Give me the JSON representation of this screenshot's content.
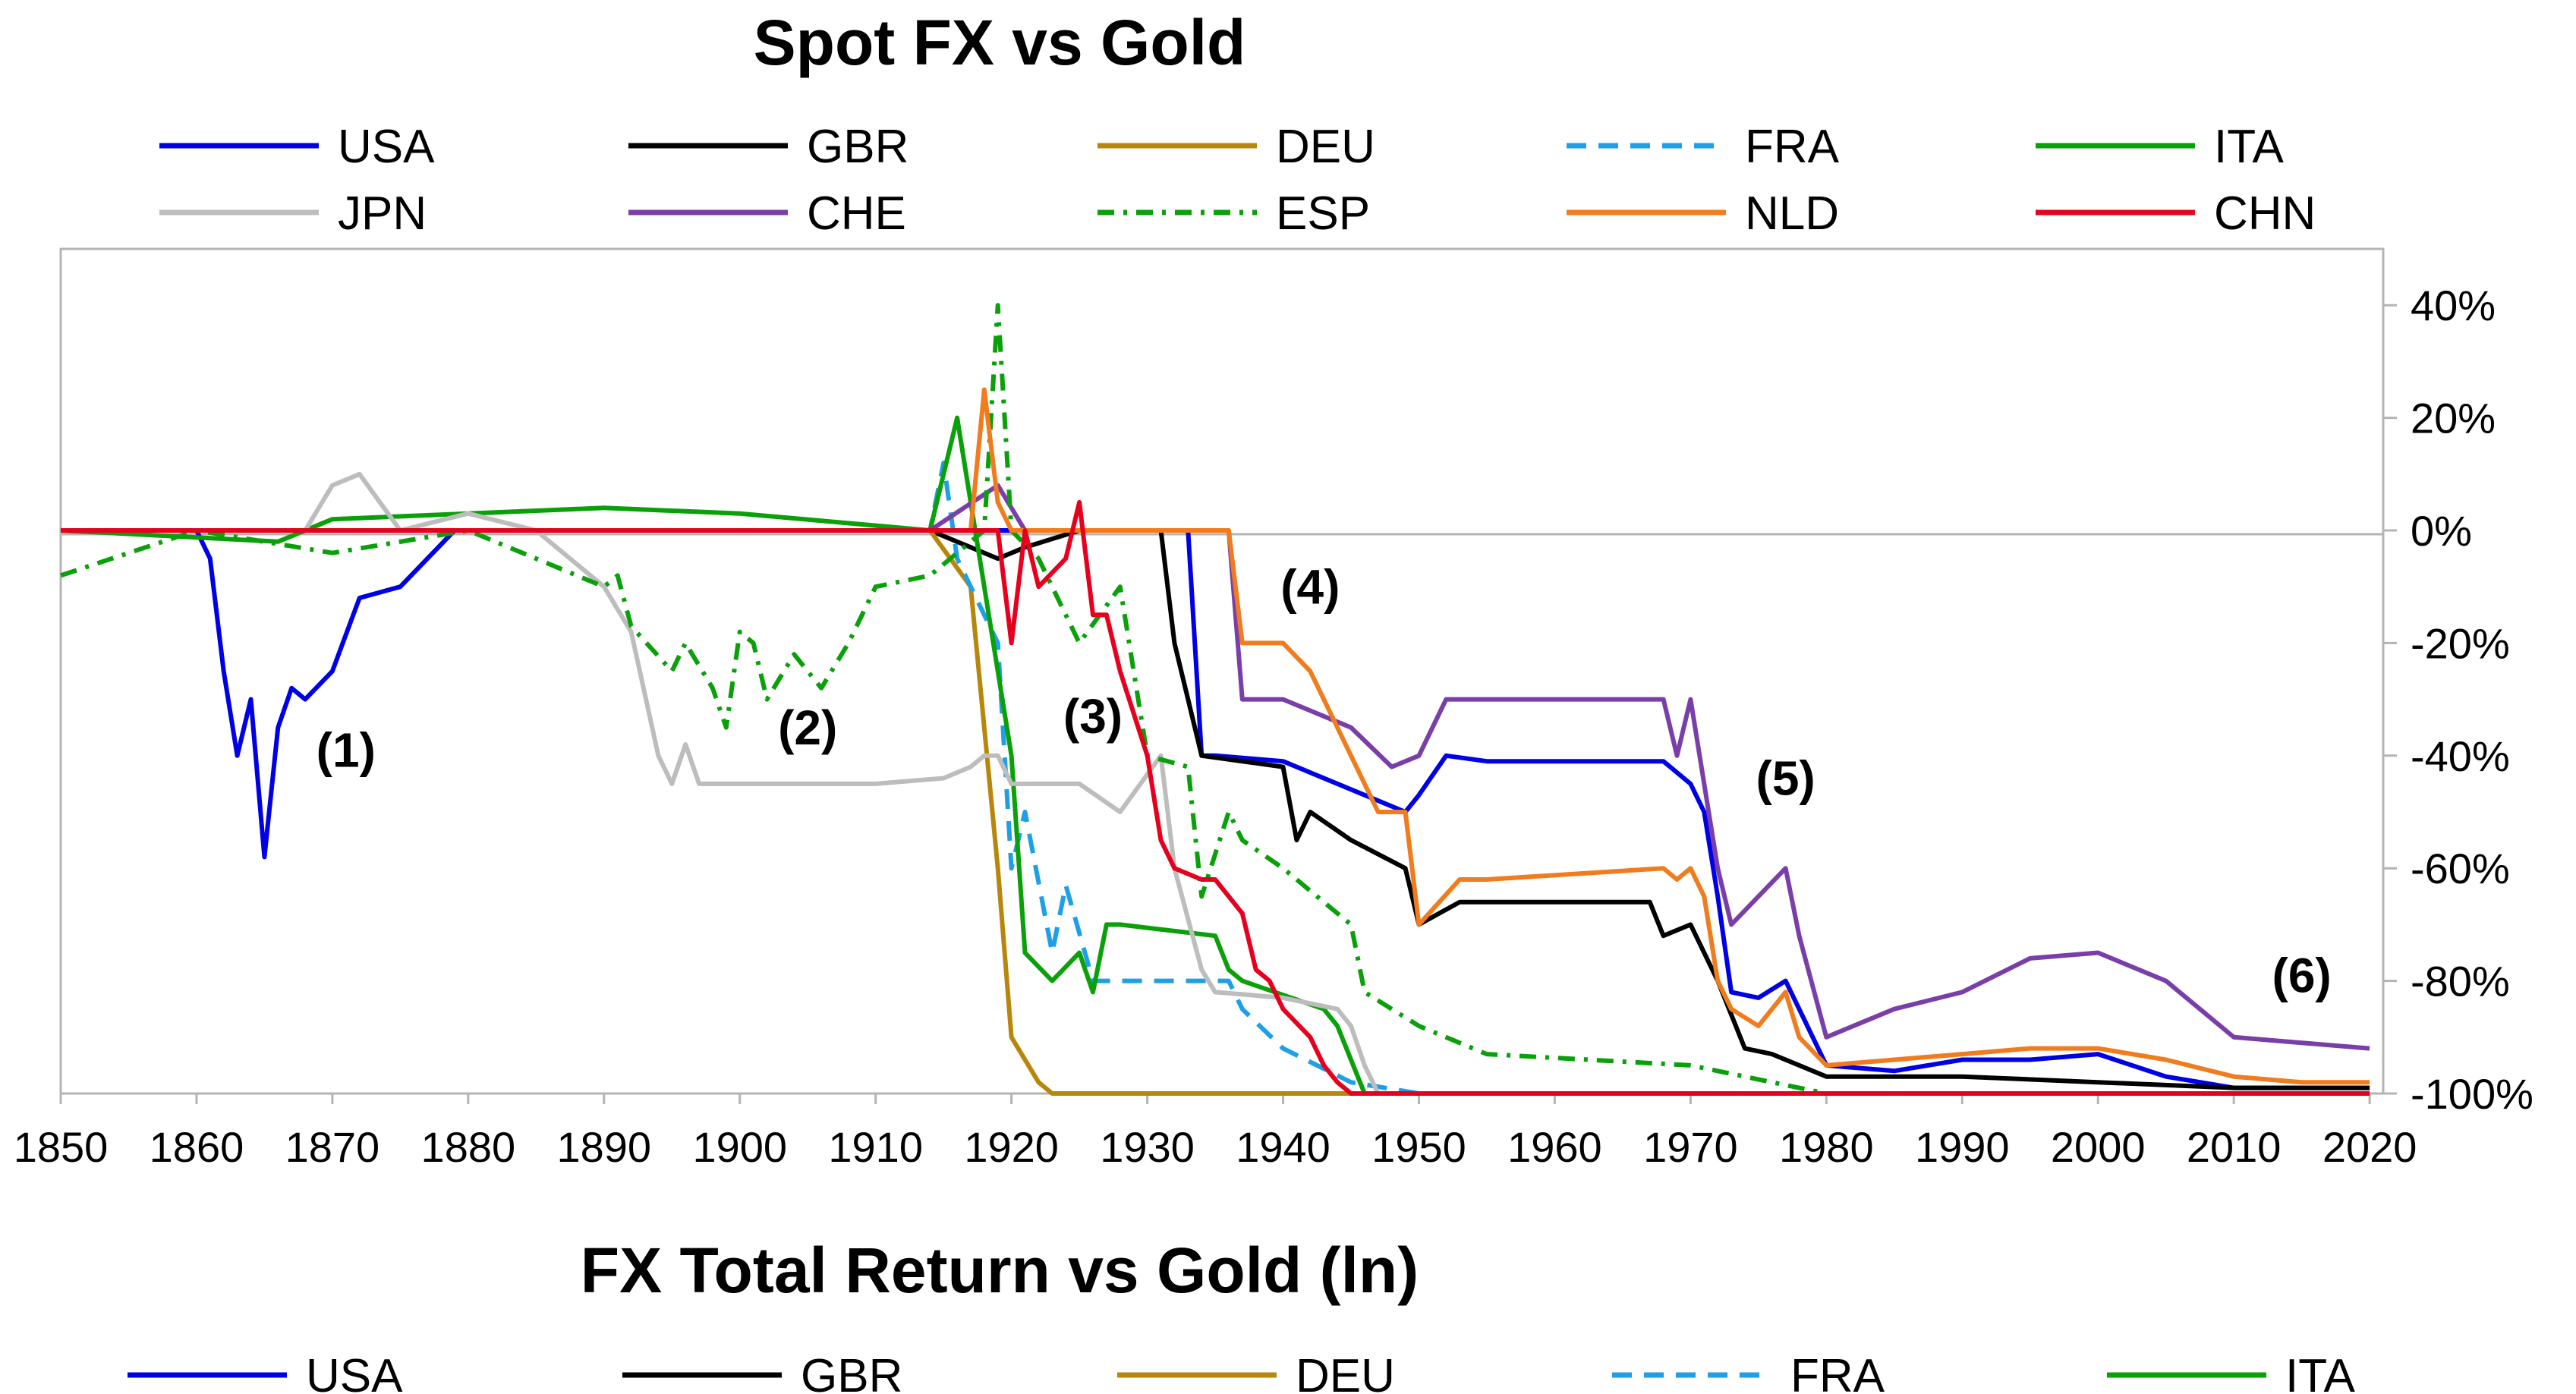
{
  "chart_data": [
    {
      "type": "line",
      "title": "Spot FX vs Gold",
      "xlabel": "",
      "ylabel": "",
      "xlim": [
        1850,
        2021
      ],
      "ylim": [
        -100,
        50
      ],
      "x_ticks": [
        "1850",
        "1860",
        "1870",
        "1880",
        "1890",
        "1900",
        "1910",
        "1920",
        "1930",
        "1940",
        "1950",
        "1960",
        "1970",
        "1980",
        "1990",
        "2000",
        "2010",
        "2020"
      ],
      "y_ticks": [
        "40%",
        "20%",
        "0%",
        "-20%",
        "-40%",
        "-60%",
        "-80%",
        "-100%"
      ],
      "y_tick_values": [
        40,
        20,
        0,
        -20,
        -40,
        -60,
        -80,
        -100
      ],
      "legend_position": "top",
      "annotations": [
        {
          "label": "(1)",
          "x": 1871,
          "y": -42
        },
        {
          "label": "(2)",
          "x": 1905,
          "y": -38
        },
        {
          "label": "(3)",
          "x": 1926,
          "y": -36
        },
        {
          "label": "(4)",
          "x": 1942,
          "y": -13
        },
        {
          "label": "(5)",
          "x": 1977,
          "y": -47
        },
        {
          "label": "(6)",
          "x": 2015,
          "y": -82
        }
      ],
      "series": [
        {
          "name": "USA",
          "color": "#0000e6",
          "dash": "solid",
          "x": [
            1850,
            1860,
            1861,
            1862,
            1863,
            1864,
            1865,
            1866,
            1867,
            1868,
            1870,
            1872,
            1875,
            1879,
            1900,
            1933,
            1934,
            1935,
            1940,
            1945,
            1949,
            1950,
            1952,
            1955,
            1968,
            1970,
            1971,
            1972,
            1973,
            1975,
            1977,
            1979,
            1980,
            1985,
            1990,
            1995,
            2000,
            2005,
            2010,
            2015,
            2020
          ],
          "y": [
            0,
            0,
            -5,
            -25,
            -40,
            -30,
            -58,
            -35,
            -28,
            -30,
            -25,
            -12,
            -10,
            0,
            0,
            0,
            -40,
            -40,
            -41,
            -46,
            -50,
            -47,
            -40,
            -41,
            -41,
            -45,
            -50,
            -65,
            -82,
            -83,
            -80,
            -90,
            -95,
            -96,
            -94,
            -94,
            -93,
            -97,
            -99,
            -99,
            -99
          ]
        },
        {
          "name": "GBR",
          "color": "#000000",
          "dash": "solid",
          "x": [
            1850,
            1914,
            1919,
            1921,
            1925,
            1931,
            1932,
            1934,
            1940,
            1941,
            1942,
            1945,
            1949,
            1950,
            1953,
            1955,
            1967,
            1968,
            1970,
            1972,
            1974,
            1976,
            1980,
            1990,
            2000,
            2010,
            2020
          ],
          "y": [
            0,
            0,
            -5,
            -3,
            0,
            0,
            -20,
            -40,
            -42,
            -55,
            -50,
            -55,
            -60,
            -70,
            -66,
            -66,
            -66,
            -72,
            -70,
            -80,
            -92,
            -93,
            -97,
            -97,
            -98,
            -99,
            -99
          ]
        },
        {
          "name": "DEU",
          "color": "#b8860b",
          "dash": "solid",
          "x": [
            1850,
            1914,
            1917,
            1918,
            1919,
            1920,
            1922,
            1923,
            2020
          ],
          "y": [
            0,
            0,
            -10,
            -35,
            -60,
            -90,
            -98,
            -100,
            -100
          ]
        },
        {
          "name": "FRA",
          "color": "#1e9fe6",
          "dash": "dashed",
          "x": [
            1850,
            1914,
            1915,
            1916,
            1919,
            1920,
            1921,
            1923,
            1924,
            1926,
            1927,
            1936,
            1937,
            1940,
            1945,
            1950,
            1960,
            2020
          ],
          "y": [
            0,
            0,
            12,
            -5,
            -20,
            -60,
            -50,
            -75,
            -63,
            -80,
            -80,
            -80,
            -85,
            -92,
            -98,
            -100,
            -100,
            -100
          ]
        },
        {
          "name": "ITA",
          "color": "#0aa00a",
          "dash": "solid",
          "x": [
            1850,
            1866,
            1870,
            1880,
            1890,
            1900,
            1914,
            1916,
            1918,
            1920,
            1921,
            1923,
            1925,
            1926,
            1927,
            1928,
            1935,
            1936,
            1937,
            1943,
            1944,
            1946,
            2020
          ],
          "y": [
            0,
            -2,
            2,
            3,
            4,
            3,
            0,
            20,
            -10,
            -40,
            -75,
            -80,
            -75,
            -82,
            -70,
            -70,
            -72,
            -78,
            -80,
            -85,
            -88,
            -100,
            -100
          ]
        },
        {
          "name": "JPN",
          "color": "#bdbdbd",
          "dash": "solid",
          "x": [
            1850,
            1868,
            1870,
            1872,
            1875,
            1880,
            1885,
            1890,
            1892,
            1894,
            1895,
            1896,
            1897,
            1900,
            1910,
            1915,
            1917,
            1918,
            1919,
            1920,
            1925,
            1928,
            1931,
            1932,
            1934,
            1935,
            1940,
            1944,
            1945,
            1946,
            1947,
            1948,
            2020
          ],
          "y": [
            0,
            0,
            8,
            10,
            0,
            3,
            0,
            -10,
            -18,
            -40,
            -45,
            -38,
            -45,
            -45,
            -45,
            -44,
            -42,
            -40,
            -40,
            -45,
            -45,
            -50,
            -40,
            -60,
            -78,
            -82,
            -83,
            -85,
            -88,
            -95,
            -100,
            -100,
            -100
          ]
        },
        {
          "name": "CHE",
          "color": "#7a3ea8",
          "dash": "solid",
          "x": [
            1850,
            1914,
            1919,
            1921,
            1925,
            1935,
            1936,
            1937,
            1940,
            1945,
            1948,
            1950,
            1952,
            1955,
            1968,
            1969,
            1970,
            1971,
            1972,
            1973,
            1975,
            1977,
            1978,
            1980,
            1985,
            1990,
            1995,
            2000,
            2005,
            2008,
            2010,
            2015,
            2020
          ],
          "y": [
            0,
            0,
            8,
            0,
            0,
            0,
            0,
            -30,
            -30,
            -35,
            -42,
            -40,
            -30,
            -30,
            -30,
            -40,
            -30,
            -45,
            -60,
            -70,
            -65,
            -60,
            -72,
            -90,
            -85,
            -82,
            -76,
            -75,
            -80,
            -86,
            -90,
            -91,
            -92
          ]
        },
        {
          "name": "ESP",
          "color": "#0aa00a",
          "dash": "dashdot",
          "x": [
            1850,
            1860,
            1870,
            1880,
            1885,
            1890,
            1891,
            1892,
            1895,
            1896,
            1898,
            1899,
            1900,
            1901,
            1902,
            1904,
            1906,
            1908,
            1910,
            1914,
            1918,
            1919,
            1920,
            1922,
            1925,
            1928,
            1930,
            1933,
            1934,
            1936,
            1937,
            1940,
            1945,
            1946,
            1950,
            1955,
            1970,
            1980,
            2020
          ],
          "y": [
            -8,
            0,
            -4,
            0,
            -5,
            -10,
            -8,
            -17,
            -25,
            -20,
            -28,
            -35,
            -18,
            -20,
            -30,
            -22,
            -28,
            -20,
            -10,
            -8,
            0,
            40,
            0,
            -5,
            -20,
            -10,
            -40,
            -42,
            -65,
            -50,
            -55,
            -60,
            -70,
            -82,
            -88,
            -93,
            -95,
            -100,
            -100
          ]
        },
        {
          "name": "NLD",
          "color": "#f07c1e",
          "dash": "solid",
          "x": [
            1850,
            1914,
            1917,
            1918,
            1919,
            1920,
            1925,
            1936,
            1937,
            1940,
            1942,
            1945,
            1947,
            1949,
            1950,
            1953,
            1955,
            1968,
            1969,
            1970,
            1971,
            1972,
            1973,
            1975,
            1977,
            1978,
            1980,
            1985,
            1990,
            1995,
            2000,
            2005,
            2010,
            2015,
            2020
          ],
          "y": [
            0,
            0,
            0,
            25,
            5,
            0,
            0,
            0,
            -20,
            -20,
            -25,
            -40,
            -50,
            -50,
            -70,
            -62,
            -62,
            -60,
            -62,
            -60,
            -65,
            -80,
            -85,
            -88,
            -82,
            -90,
            -95,
            -94,
            -93,
            -92,
            -92,
            -94,
            -97,
            -98,
            -98
          ]
        },
        {
          "name": "CHN",
          "color": "#e6001e",
          "dash": "solid",
          "x": [
            1850,
            1919,
            1920,
            1921,
            1922,
            1924,
            1925,
            1926,
            1927,
            1928,
            1930,
            1931,
            1932,
            1934,
            1935,
            1937,
            1938,
            1939,
            1940,
            1942,
            1943,
            1944,
            1945,
            1946,
            2020
          ],
          "y": [
            0,
            0,
            -20,
            0,
            -10,
            -5,
            5,
            -15,
            -15,
            -25,
            -40,
            -55,
            -60,
            -62,
            -62,
            -68,
            -78,
            -80,
            -85,
            -90,
            -95,
            -98,
            -100,
            -100,
            -100
          ]
        }
      ]
    },
    {
      "type": "line",
      "title": "FX Total Return vs Gold (ln)",
      "legend_position": "top",
      "series": [
        {
          "name": "USA",
          "color": "#0000e6",
          "dash": "solid"
        },
        {
          "name": "GBR",
          "color": "#000000",
          "dash": "solid"
        },
        {
          "name": "DEU",
          "color": "#b8860b",
          "dash": "solid"
        },
        {
          "name": "FRA",
          "color": "#1e9fe6",
          "dash": "dashed"
        },
        {
          "name": "ITA",
          "color": "#0aa00a",
          "dash": "solid"
        }
      ]
    }
  ]
}
